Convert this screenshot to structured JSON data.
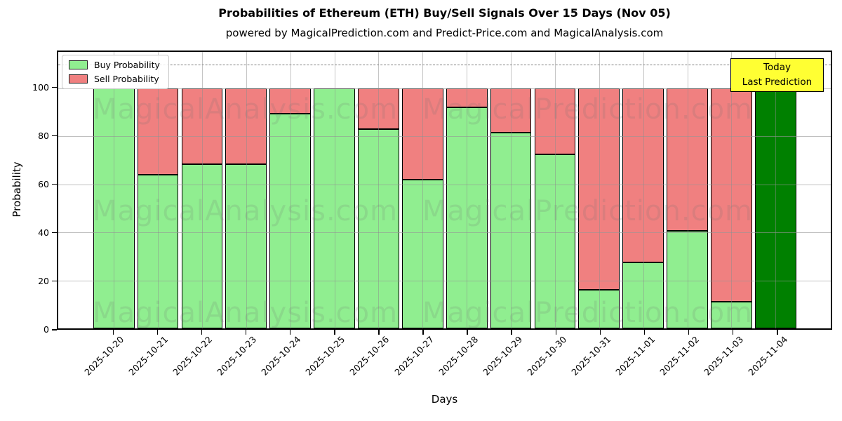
{
  "title": "Probabilities of Ethereum (ETH) Buy/Sell Signals Over 15 Days (Nov 05)",
  "subtitle": "powered by MagicalPrediction.com and Predict-Price.com and MagicalAnalysis.com",
  "legend": {
    "buy_label": "Buy Probability",
    "sell_label": "Sell Probability"
  },
  "annotation": {
    "line1": "Today",
    "line2": "Last Prediction"
  },
  "axes": {
    "ylabel": "Probability",
    "xlabel": "Days",
    "yticks": [
      0,
      20,
      40,
      60,
      80,
      100
    ],
    "ylim": [
      0,
      115.2
    ],
    "dashed_line_y": 110,
    "grid": "on"
  },
  "colors": {
    "buy": "#90EE90",
    "sell": "#F08080",
    "today_bar": "#008000",
    "annotation_bg": "#FFFF33",
    "bar_edge": "#000000",
    "grid": "#b0b0b0",
    "watermark": "rgba(115,115,115,0.17)"
  },
  "watermarks": [
    "MagicalAnalysis.com",
    "MagicalPrediction.com"
  ],
  "chart_data": {
    "type": "bar",
    "stacked": true,
    "title": "Probabilities of Ethereum (ETH) Buy/Sell Signals Over 15 Days (Nov 05)",
    "xlabel": "Days",
    "ylabel": "Probability",
    "ylim": [
      0,
      115.2
    ],
    "legend_position": "upper left",
    "categories": [
      "2025-10-20",
      "2025-10-21",
      "2025-10-22",
      "2025-10-23",
      "2025-10-24",
      "2025-10-25",
      "2025-10-26",
      "2025-10-27",
      "2025-10-28",
      "2025-10-29",
      "2025-10-30",
      "2025-10-31",
      "2025-11-01",
      "2025-11-02",
      "2025-11-03",
      "2025-11-04"
    ],
    "series": [
      {
        "name": "Buy Probability",
        "color": "#90EE90",
        "values": [
          100,
          64,
          68.5,
          68.5,
          89.5,
          100,
          83,
          62,
          92,
          81.5,
          72.5,
          16,
          27.5,
          40.5,
          11,
          100
        ]
      },
      {
        "name": "Sell Probability",
        "color": "#F08080",
        "values": [
          0,
          36,
          31.5,
          31.5,
          10.5,
          0,
          17,
          38,
          8,
          18.5,
          27.5,
          84,
          72.5,
          59.5,
          89,
          0
        ]
      }
    ],
    "today_bar_index": 15,
    "today_bar_color": "#008000"
  }
}
